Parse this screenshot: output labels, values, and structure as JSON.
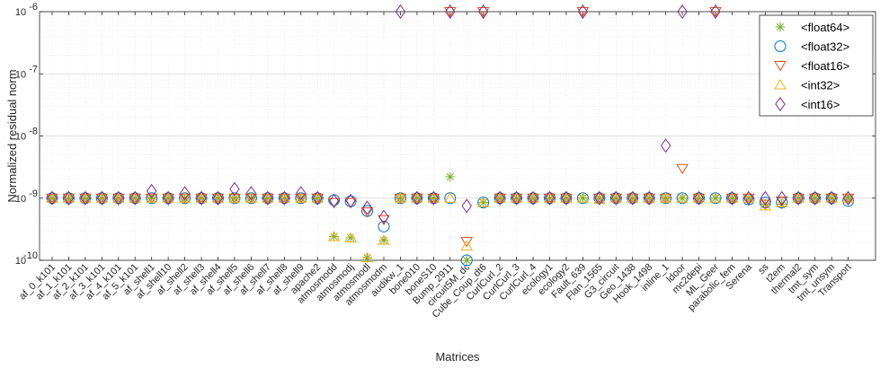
{
  "chart_data": {
    "type": "scatter",
    "xlabel": "Matrices",
    "ylabel": "Normalized residual norm",
    "yscale": "log",
    "ylim": [
      1e-10,
      1e-06
    ],
    "y_tick_labels": [
      "10",
      "10",
      "10",
      "10",
      "10"
    ],
    "y_tick_exponents": [
      "-10",
      "-9",
      "-8",
      "-7",
      "-6"
    ],
    "grid": true,
    "legend_position": "top-right",
    "categories": [
      "af_0_k101",
      "af_1_k101",
      "af_2_k101",
      "af_3_k101",
      "af_4_k101",
      "af_5_k101",
      "af_shell1",
      "af_shell10",
      "af_shell2",
      "af_shell3",
      "af_shell4",
      "af_shell5",
      "af_shell6",
      "af_shell7",
      "af_shell8",
      "af_shell9",
      "apache2",
      "atmosmodd",
      "atmosmodj",
      "atmosmodl",
      "atmosmodm",
      "audikw_1",
      "bone010",
      "boneS10",
      "Bump_2911",
      "circuit5M_dc",
      "Cube_Coup_dt6",
      "CurlCurl_2",
      "CurlCurl_3",
      "CurlCurl_4",
      "ecology1",
      "ecology2",
      "Fault_639",
      "Flan_1565",
      "G3_circuit",
      "Geo_1438",
      "Hook_1498",
      "inline_1",
      "ldoor",
      "mc2depi",
      "ML_Geer",
      "parabolic_fem",
      "Serena",
      "ss",
      "t2em",
      "thermal2",
      "tmt_sym",
      "tmt_unsym",
      "Transport"
    ],
    "series": [
      {
        "name": "<float64>",
        "color": "#77ac30",
        "marker": "asterisk",
        "values": [
          1e-09,
          1e-09,
          1e-09,
          1e-09,
          1e-09,
          1e-09,
          1e-09,
          1e-09,
          1e-09,
          1e-09,
          1e-09,
          1e-09,
          1e-09,
          1e-09,
          1e-09,
          1e-09,
          1e-09,
          2.4e-10,
          2.3e-10,
          1.1e-10,
          2.1e-10,
          1e-09,
          1e-09,
          1e-09,
          2.2e-09,
          1e-10,
          8.5e-10,
          1e-09,
          1e-09,
          1e-09,
          1e-09,
          1e-09,
          1e-09,
          1e-09,
          1e-09,
          1e-09,
          1e-09,
          1e-09,
          1e-09,
          1e-09,
          1e-09,
          1e-09,
          1e-09,
          8e-10,
          8e-10,
          1e-09,
          1e-09,
          1e-09,
          1e-09
        ]
      },
      {
        "name": "<float32>",
        "color": "#0072bd",
        "marker": "circle",
        "values": [
          1e-09,
          1e-09,
          1e-09,
          1e-09,
          1e-09,
          1e-09,
          1e-09,
          1e-09,
          1e-09,
          1e-09,
          1e-09,
          1e-09,
          1e-09,
          1e-09,
          1e-09,
          1e-09,
          1e-09,
          9.3e-10,
          8.9e-10,
          6.2e-10,
          3.5e-10,
          1e-09,
          1e-09,
          1e-09,
          1e-09,
          1e-10,
          8.5e-10,
          1e-09,
          1e-09,
          1e-09,
          1e-09,
          1e-09,
          1e-09,
          1e-09,
          1e-09,
          1e-09,
          1e-09,
          1e-09,
          1e-09,
          1e-09,
          1e-09,
          1e-09,
          9.5e-10,
          8.5e-10,
          8.5e-10,
          1e-09,
          1e-09,
          1e-09,
          9e-10
        ]
      },
      {
        "name": "<float16>",
        "color": "#d95319",
        "marker": "triangle-down",
        "values": [
          1e-09,
          1e-09,
          1e-09,
          1e-09,
          1e-09,
          1e-09,
          1e-09,
          1e-09,
          1e-09,
          1e-09,
          1e-09,
          1e-09,
          1e-09,
          1e-09,
          1e-09,
          1e-09,
          1e-09,
          8.5e-10,
          8.5e-10,
          6e-10,
          4.5e-10,
          1e-09,
          1e-09,
          1e-09,
          1e-06,
          2e-10,
          1e-06,
          1e-09,
          1e-09,
          1e-09,
          1e-09,
          1e-09,
          1e-06,
          1e-09,
          1e-09,
          1e-09,
          1e-09,
          1e-09,
          3e-09,
          1e-09,
          1e-06,
          1e-09,
          1e-09,
          8e-10,
          9e-10,
          1e-09,
          1e-09,
          1e-09,
          1e-09
        ]
      },
      {
        "name": "<int32>",
        "color": "#edb120",
        "marker": "triangle-up",
        "values": [
          1e-09,
          1e-09,
          1e-09,
          1e-09,
          1e-09,
          1e-09,
          1e-09,
          1e-09,
          1e-09,
          1e-09,
          1e-09,
          1e-09,
          1e-09,
          1e-09,
          1e-09,
          1e-09,
          1e-09,
          2.4e-10,
          2.3e-10,
          1.1e-10,
          2.1e-10,
          1e-09,
          1e-09,
          1e-09,
          1e-09,
          1.7e-10,
          8.5e-10,
          1e-09,
          1e-09,
          1e-09,
          1e-09,
          1e-09,
          1e-09,
          9.5e-10,
          1e-09,
          1e-09,
          1e-09,
          1e-09,
          1e-09,
          1e-09,
          1e-09,
          1e-09,
          1e-09,
          7.5e-10,
          8.5e-10,
          1e-09,
          1e-09,
          1e-09,
          1e-09
        ]
      },
      {
        "name": "<int16>",
        "color": "#7e2f8e",
        "marker": "diamond",
        "values": [
          1e-09,
          1e-09,
          1e-09,
          1e-09,
          1e-09,
          1e-09,
          1.3e-09,
          1e-09,
          1.2e-09,
          1e-09,
          1e-09,
          1.4e-09,
          1.2e-09,
          1e-09,
          1e-09,
          1.2e-09,
          1e-09,
          9e-10,
          9e-10,
          7e-10,
          5e-10,
          1e-06,
          1e-09,
          1e-09,
          1e-06,
          7.5e-10,
          1e-06,
          1e-09,
          1e-09,
          1e-09,
          1e-09,
          1e-09,
          1e-06,
          1e-09,
          1e-09,
          1e-09,
          1e-09,
          7e-09,
          1e-06,
          1e-09,
          1e-06,
          1e-09,
          1e-09,
          1e-09,
          1e-09,
          1e-09,
          1e-09,
          1e-09,
          1e-09
        ]
      }
    ]
  }
}
